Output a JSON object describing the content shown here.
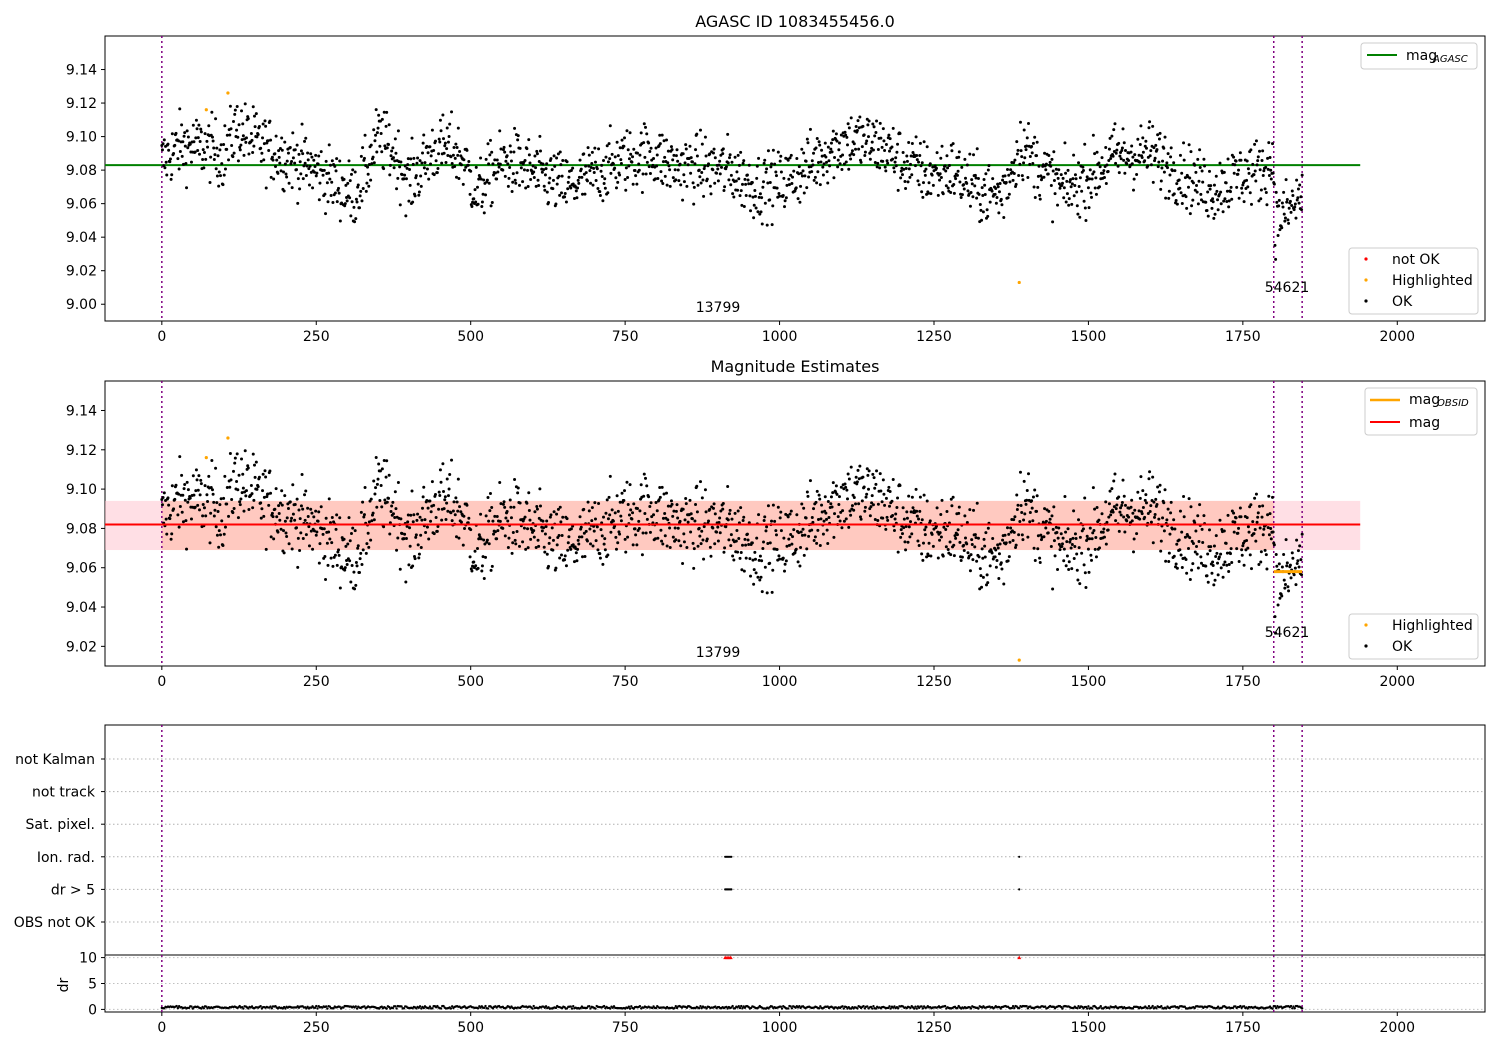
{
  "chart_data": [
    {
      "type": "scatter",
      "title": "AGASC ID 1083455456.0",
      "xlim": [
        -92,
        2142
      ],
      "ylim": [
        8.99,
        9.16
      ],
      "xticks": [
        "0",
        "250",
        "500",
        "750",
        "1000",
        "1250",
        "1500",
        "1750",
        "2000"
      ],
      "xtick_values": [
        0,
        250,
        500,
        750,
        1000,
        1250,
        1500,
        1750,
        2000
      ],
      "yticks": [
        "9.00",
        "9.02",
        "9.04",
        "9.06",
        "9.08",
        "9.10",
        "9.12",
        "9.14"
      ],
      "ytick_values": [
        9.0,
        9.02,
        9.04,
        9.06,
        9.08,
        9.1,
        9.12,
        9.14
      ],
      "obs_boundaries": [
        0,
        1800,
        1846
      ],
      "obs_labels": [
        {
          "text": "13799",
          "x": 900,
          "y": 8.99
        },
        {
          "text": "54621",
          "x": 1823,
          "y": 9.0
        }
      ],
      "lines": [
        {
          "name": "mag",
          "subscript": "AGASC",
          "color": "#008000",
          "y": 9.083,
          "x_range": [
            -92,
            1940
          ]
        }
      ],
      "highlighted_points": [
        {
          "x": 72,
          "y": 9.116
        },
        {
          "x": 107,
          "y": 9.126
        },
        {
          "x": 1388,
          "y": 9.013
        }
      ],
      "legend_lines": [
        {
          "label": "mag",
          "sub": "AGASC",
          "color": "#008000"
        }
      ],
      "legend_points": [
        {
          "label": "not OK",
          "color": "#ff0000"
        },
        {
          "label": "Highlighted",
          "color": "#ffa500"
        },
        {
          "label": "OK",
          "color": "#000000"
        }
      ]
    },
    {
      "type": "scatter",
      "title": "Magnitude Estimates",
      "xlim": [
        -92,
        2142
      ],
      "ylim": [
        9.01,
        9.155
      ],
      "xticks": [
        "0",
        "250",
        "500",
        "750",
        "1000",
        "1250",
        "1500",
        "1750",
        "2000"
      ],
      "xtick_values": [
        0,
        250,
        500,
        750,
        1000,
        1250,
        1500,
        1750,
        2000
      ],
      "yticks": [
        "9.02",
        "9.04",
        "9.06",
        "9.08",
        "9.10",
        "9.12",
        "9.14"
      ],
      "ytick_values": [
        9.02,
        9.04,
        9.06,
        9.08,
        9.1,
        9.12,
        9.14
      ],
      "obs_boundaries": [
        0,
        1800,
        1846
      ],
      "obs_labels": [
        {
          "text": "13799",
          "x": 900,
          "y": 9.01
        },
        {
          "text": "54621",
          "x": 1823,
          "y": 9.022
        }
      ],
      "lines": [
        {
          "name": "mag",
          "color": "#ff0000",
          "y": 9.082,
          "x_range": [
            -92,
            1940
          ]
        }
      ],
      "obs_segments": [
        {
          "name": "mag",
          "subscript": "OBSID",
          "color": "#ffa500",
          "y": 9.058,
          "x_range": [
            1800,
            1846
          ]
        }
      ],
      "bands": [
        {
          "color": "#ffc0cb",
          "opacity": 0.5,
          "y_range": [
            9.069,
            9.094
          ],
          "x_range": [
            -92,
            1940
          ]
        },
        {
          "color": "#ffa07a",
          "opacity": 0.35,
          "y_range": [
            9.069,
            9.094
          ],
          "x_range": [
            0,
            1800
          ]
        }
      ],
      "highlighted_points": [
        {
          "x": 72,
          "y": 9.116
        },
        {
          "x": 107,
          "y": 9.126
        },
        {
          "x": 1388,
          "y": 9.013
        }
      ],
      "legend_lines": [
        {
          "label": "mag",
          "sub": "OBSID",
          "color": "#ffa500"
        },
        {
          "label": "mag",
          "sub": "",
          "color": "#ff0000"
        }
      ],
      "legend_points": [
        {
          "label": "Highlighted",
          "color": "#ffa500"
        },
        {
          "label": "OK",
          "color": "#000000"
        }
      ]
    },
    {
      "type": "scatter",
      "xlim": [
        -92,
        2142
      ],
      "xticks": [
        "0",
        "250",
        "500",
        "750",
        "1000",
        "1250",
        "1500",
        "1750",
        "2000"
      ],
      "xtick_values": [
        0,
        250,
        500,
        750,
        1000,
        1250,
        1500,
        1750,
        2000
      ],
      "flag_labels": [
        "not Kalman",
        "not track",
        "Sat. pixel.",
        "Ion. rad.",
        "dr > 5",
        "OBS not OK"
      ],
      "flag_points": [
        {
          "flag": "Ion. rad.",
          "x": [
            912,
            914,
            916,
            918,
            920,
            922,
            1388
          ]
        },
        {
          "flag": "dr > 5",
          "x": [
            912,
            914,
            916,
            918,
            920,
            922,
            1388
          ]
        }
      ],
      "obs_boundaries": [
        0,
        1800,
        1846
      ]
    },
    {
      "type": "scatter",
      "ylabel": "dr",
      "xlim": [
        -92,
        2142
      ],
      "ylim": [
        -0.5,
        10.5
      ],
      "yticks": [
        "0",
        "5",
        "10"
      ],
      "ytick_values": [
        0,
        5,
        10
      ],
      "xticks": [
        "0",
        "250",
        "500",
        "750",
        "1000",
        "1250",
        "1500",
        "1750",
        "2000"
      ],
      "xtick_values": [
        0,
        250,
        500,
        750,
        1000,
        1250,
        1500,
        1750,
        2000
      ],
      "clipped_points": [
        {
          "x": 912,
          "y": 10
        },
        {
          "x": 915,
          "y": 10
        },
        {
          "x": 918,
          "y": 10
        },
        {
          "x": 921,
          "y": 10
        },
        {
          "x": 1388,
          "y": 10
        }
      ],
      "obs_boundaries": [
        0,
        1800,
        1846
      ]
    }
  ]
}
